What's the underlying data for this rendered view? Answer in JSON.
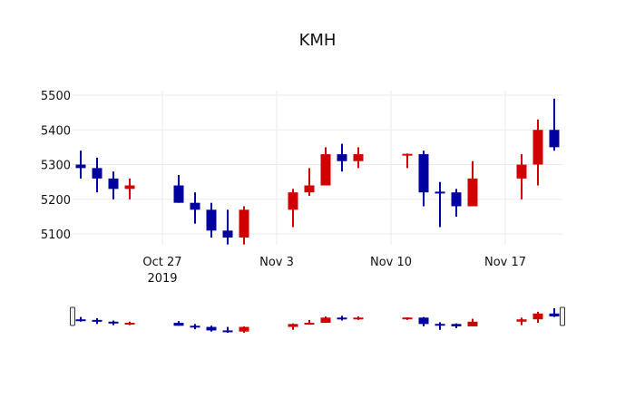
{
  "chart_data": {
    "type": "candlestick",
    "title": "KMH",
    "xlabel": "",
    "ylabel": "",
    "ylim": [
      5069,
      5513
    ],
    "xlim": [
      "2019-10-21T12:00",
      "2019-11-20T12:00"
    ],
    "increasing_color": "#0000a0",
    "decreasing_color": "#d00000",
    "grid": true,
    "rangeslider": true,
    "y_ticks": [
      5100,
      5200,
      5300,
      5400,
      5500
    ],
    "x_ticks": [
      {
        "date": "2019-10-27",
        "label": "Oct 27",
        "sublabel": "2019"
      },
      {
        "date": "2019-11-03",
        "label": "Nov 3"
      },
      {
        "date": "2019-11-10",
        "label": "Nov 10"
      },
      {
        "date": "2019-11-17",
        "label": "Nov 17"
      }
    ],
    "data": [
      {
        "date": "2019-10-22",
        "open": 5290,
        "high": 5340,
        "low": 5260,
        "close": 5300
      },
      {
        "date": "2019-10-23",
        "open": 5260,
        "high": 5320,
        "low": 5220,
        "close": 5290
      },
      {
        "date": "2019-10-24",
        "open": 5230,
        "high": 5280,
        "low": 5200,
        "close": 5260
      },
      {
        "date": "2019-10-25",
        "open": 5240,
        "high": 5260,
        "low": 5200,
        "close": 5230
      },
      {
        "date": "2019-10-28",
        "open": 5190,
        "high": 5270,
        "low": 5190,
        "close": 5240
      },
      {
        "date": "2019-10-29",
        "open": 5170,
        "high": 5220,
        "low": 5130,
        "close": 5190
      },
      {
        "date": "2019-10-30",
        "open": 5110,
        "high": 5190,
        "low": 5090,
        "close": 5170
      },
      {
        "date": "2019-10-31",
        "open": 5090,
        "high": 5170,
        "low": 5070,
        "close": 5110
      },
      {
        "date": "2019-11-01",
        "open": 5170,
        "high": 5180,
        "low": 5070,
        "close": 5090
      },
      {
        "date": "2019-11-04",
        "open": 5220,
        "high": 5230,
        "low": 5120,
        "close": 5170
      },
      {
        "date": "2019-11-05",
        "open": 5240,
        "high": 5290,
        "low": 5210,
        "close": 5220
      },
      {
        "date": "2019-11-06",
        "open": 5330,
        "high": 5350,
        "low": 5240,
        "close": 5240
      },
      {
        "date": "2019-11-07",
        "open": 5310,
        "high": 5360,
        "low": 5280,
        "close": 5330
      },
      {
        "date": "2019-11-08",
        "open": 5330,
        "high": 5350,
        "low": 5290,
        "close": 5310
      },
      {
        "date": "2019-11-11",
        "open": 5331,
        "high": 5332,
        "low": 5290,
        "close": 5328
      },
      {
        "date": "2019-11-12",
        "open": 5220,
        "high": 5340,
        "low": 5180,
        "close": 5330
      },
      {
        "date": "2019-11-13",
        "open": 5218,
        "high": 5250,
        "low": 5120,
        "close": 5222
      },
      {
        "date": "2019-11-14",
        "open": 5180,
        "high": 5230,
        "low": 5150,
        "close": 5220
      },
      {
        "date": "2019-11-15",
        "open": 5260,
        "high": 5310,
        "low": 5180,
        "close": 5180
      },
      {
        "date": "2019-11-18",
        "open": 5300,
        "high": 5330,
        "low": 5200,
        "close": 5260
      },
      {
        "date": "2019-11-19",
        "open": 5400,
        "high": 5430,
        "low": 5240,
        "close": 5300
      },
      {
        "date": "2019-11-20",
        "open": 5350,
        "high": 5490,
        "low": 5340,
        "close": 5400
      }
    ]
  }
}
